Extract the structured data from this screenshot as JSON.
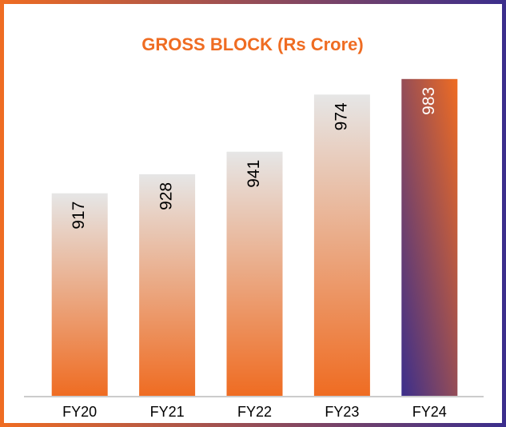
{
  "chart_data": {
    "type": "bar",
    "title": "GROSS BLOCK  (Rs Crore)",
    "categories": [
      "FY20",
      "FY21",
      "FY22",
      "FY23",
      "FY24"
    ],
    "values": [
      917,
      928,
      941,
      974,
      983
    ],
    "colors": [
      "#ef6c22",
      "#ef6c22",
      "#ef6c22",
      "#ef6c22",
      "#3b2e8c"
    ],
    "ylim": [
      800,
      1000
    ]
  }
}
